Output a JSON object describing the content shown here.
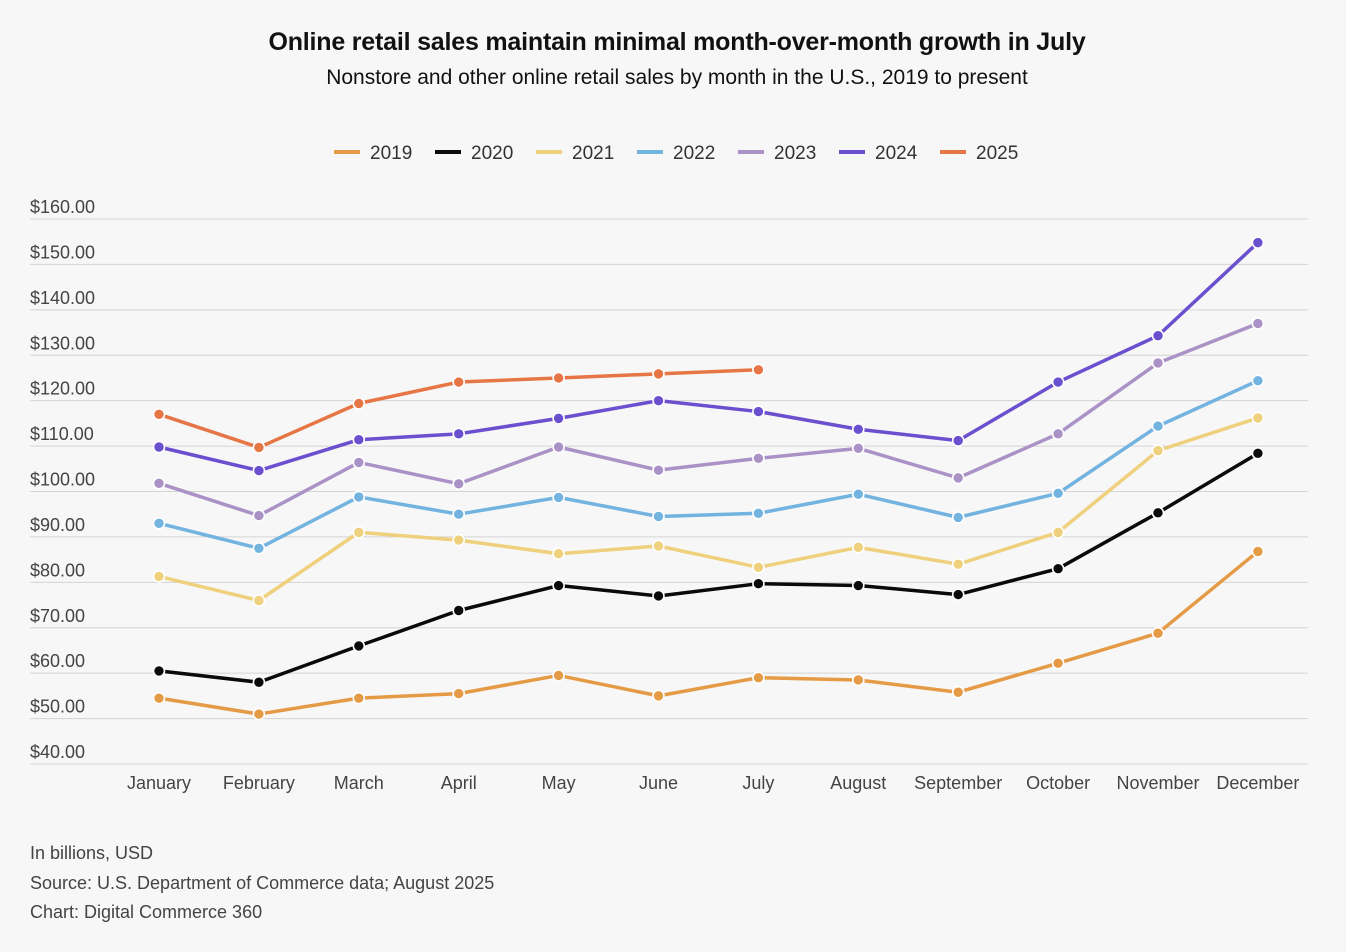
{
  "colors": {
    "2019": "#e59a46",
    "2020": "#0a0a0a",
    "2021": "#eed07d",
    "2022": "#73b3e0",
    "2023": "#ab92c6",
    "2024": "#6a4fcf",
    "2025": "#e67645",
    "grid": "#d4d4d4",
    "axis_text": "#444444"
  },
  "chart_data": {
    "type": "line",
    "title": "Online retail sales maintain minimal month-over-month growth in July",
    "subtitle": "Nonstore and other online retail sales by month in the U.S., 2019 to present",
    "xlabel": "",
    "ylabel": "",
    "unit_note": "In billions, USD",
    "categories": [
      "January",
      "February",
      "March",
      "April",
      "May",
      "June",
      "July",
      "August",
      "September",
      "October",
      "November",
      "December"
    ],
    "yticks": [
      "$40.00",
      "$50.00",
      "$60.00",
      "$70.00",
      "$80.00",
      "$90.00",
      "$100.00",
      "$110.00",
      "$120.00",
      "$130.00",
      "$140.00",
      "$150.00",
      "$160.00"
    ],
    "ylim": [
      40,
      160
    ],
    "grid": true,
    "legend_position": "top-center",
    "series": [
      {
        "name": "2019",
        "values": [
          54.5,
          51.0,
          54.5,
          55.5,
          59.5,
          55.0,
          59.0,
          58.5,
          55.8,
          62.2,
          68.8,
          86.8
        ]
      },
      {
        "name": "2020",
        "values": [
          60.5,
          58.0,
          66.0,
          73.8,
          79.3,
          77.0,
          79.7,
          79.3,
          77.3,
          83.0,
          95.3,
          108.4
        ]
      },
      {
        "name": "2021",
        "values": [
          81.3,
          76.0,
          91.0,
          89.3,
          86.3,
          88.0,
          83.3,
          87.7,
          84.0,
          91.0,
          109.0,
          116.2
        ]
      },
      {
        "name": "2022",
        "values": [
          93.0,
          87.5,
          98.8,
          95.0,
          98.7,
          94.5,
          95.2,
          99.4,
          94.3,
          99.6,
          114.4,
          124.4
        ]
      },
      {
        "name": "2023",
        "values": [
          101.8,
          94.7,
          106.4,
          101.7,
          109.8,
          104.7,
          107.3,
          109.5,
          103.0,
          112.7,
          128.3,
          137.0
        ]
      },
      {
        "name": "2024",
        "values": [
          109.8,
          104.6,
          111.4,
          112.7,
          116.1,
          120.0,
          117.6,
          113.7,
          111.2,
          124.1,
          134.3,
          154.8
        ]
      },
      {
        "name": "2025",
        "values": [
          117.0,
          109.7,
          119.4,
          124.1,
          125.0,
          125.9,
          126.8,
          null,
          null,
          null,
          null,
          null
        ]
      }
    ]
  },
  "footer": {
    "units": "In billions, USD",
    "source": "Source: U.S. Department of Commerce data; August 2025",
    "credit": "Chart: Digital Commerce 360"
  }
}
